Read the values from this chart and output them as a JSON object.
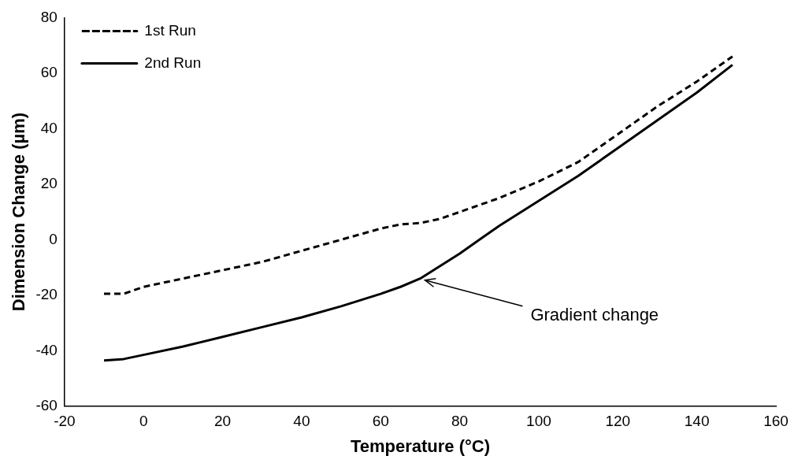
{
  "chart_data": {
    "type": "line",
    "xlabel": "Temperature (°C)",
    "ylabel": "Dimension Change (µm)",
    "xlim": [
      -20,
      160
    ],
    "xticks": [
      -20,
      0,
      20,
      40,
      60,
      80,
      100,
      120,
      140,
      160
    ],
    "ylim": [
      -60,
      80
    ],
    "yticks": [
      -60,
      -40,
      -20,
      0,
      20,
      40,
      60,
      80
    ],
    "grid": false,
    "legend": "top left",
    "marker": "none",
    "series": [
      {
        "name": "1st Run",
        "color": "#000000",
        "line_style": "dashed",
        "x": [
          -10,
          -5,
          0,
          10,
          20,
          30,
          40,
          50,
          60,
          65,
          70,
          75,
          80,
          90,
          100,
          110,
          120,
          130,
          140,
          149
        ],
        "values": [
          -19.5,
          -19.5,
          -17,
          -14,
          -11,
          -8,
          -4,
          0,
          4,
          5.5,
          6,
          7.5,
          10,
          15,
          21,
          28,
          38,
          48,
          57,
          66
        ]
      },
      {
        "name": "2nd Run",
        "color": "#000000",
        "line_style": "solid",
        "x": [
          -10,
          -5,
          0,
          10,
          20,
          30,
          40,
          50,
          60,
          65,
          70,
          80,
          85,
          90,
          100,
          110,
          120,
          130,
          140,
          149
        ],
        "values": [
          -43.5,
          -43,
          -41.5,
          -38.5,
          -35,
          -31.5,
          -28,
          -24,
          -19.5,
          -17,
          -14,
          -5,
          0,
          5,
          14,
          23,
          33,
          43,
          53,
          63
        ]
      }
    ],
    "annotations": [
      {
        "text": "Gradient change",
        "x": 70,
        "y": -14
      }
    ]
  }
}
